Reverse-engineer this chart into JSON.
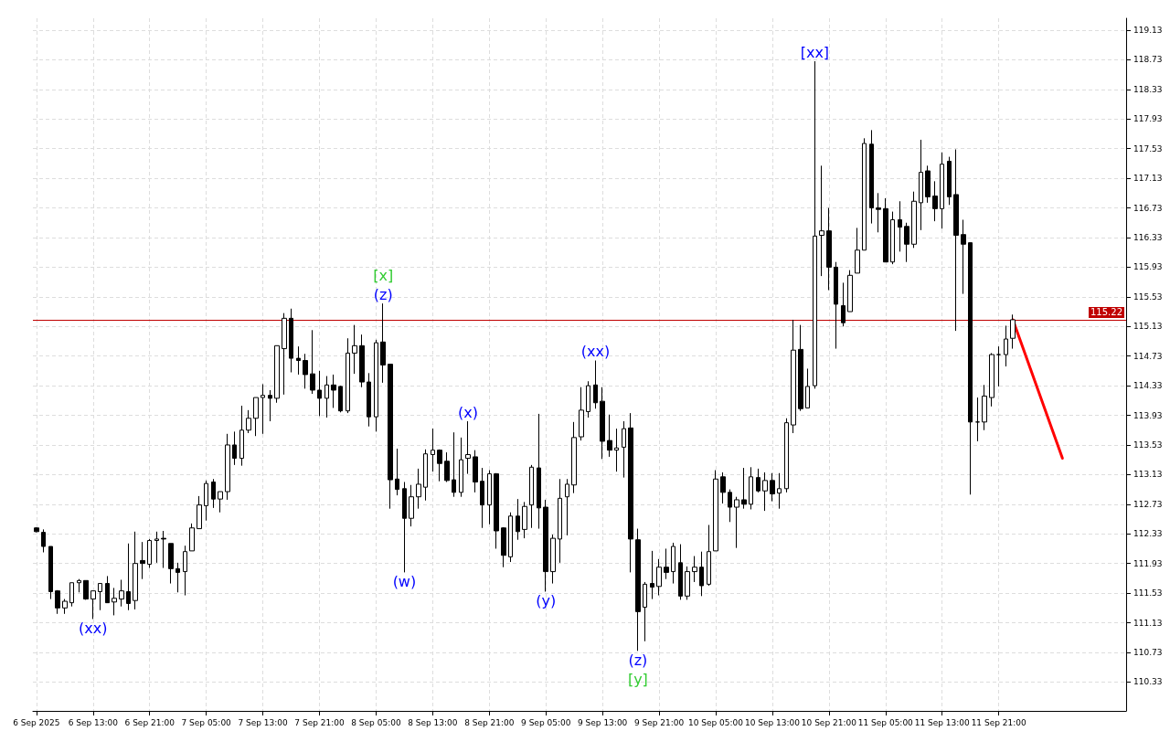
{
  "chart_data": {
    "type": "candlestick",
    "xlim": [
      "2025-09-06T04:30",
      "2025-09-12T15:00"
    ],
    "xticks": [
      {
        "value": "2025-09-06T05:00",
        "label": "6 Sep 2025"
      },
      {
        "value": "2025-09-06T13:00",
        "label": "6 Sep 13:00"
      },
      {
        "value": "2025-09-06T21:00",
        "label": "6 Sep 21:00"
      },
      {
        "value": "2025-09-07T05:00",
        "label": "7 Sep 05:00"
      },
      {
        "value": "2025-09-07T13:00",
        "label": "7 Sep 13:00"
      },
      {
        "value": "2025-09-07T21:00",
        "label": "7 Sep 21:00"
      },
      {
        "value": "2025-09-08T05:00",
        "label": "8 Sep 05:00"
      },
      {
        "value": "2025-09-08T13:00",
        "label": "8 Sep 13:00"
      },
      {
        "value": "2025-09-08T21:00",
        "label": "8 Sep 21:00"
      },
      {
        "value": "2025-09-09T05:00",
        "label": "9 Sep 05:00"
      },
      {
        "value": "2025-09-09T13:00",
        "label": "9 Sep 13:00"
      },
      {
        "value": "2025-09-09T21:00",
        "label": "9 Sep 21:00"
      },
      {
        "value": "2025-09-10T05:00",
        "label": "10 Sep 05:00"
      },
      {
        "value": "2025-09-10T13:00",
        "label": "10 Sep 13:00"
      },
      {
        "value": "2025-09-10T21:00",
        "label": "10 Sep 21:00"
      },
      {
        "value": "2025-09-11T05:00",
        "label": "11 Sep 05:00"
      },
      {
        "value": "2025-09-11T13:00",
        "label": "11 Sep 13:00"
      },
      {
        "value": "2025-09-11T21:00",
        "label": "11 Sep 21:00"
      }
    ],
    "ylim": [
      109.94,
      119.29
    ],
    "yticks": [
      110.33,
      110.73,
      111.13,
      111.53,
      111.93,
      112.33,
      112.73,
      113.13,
      113.53,
      113.93,
      114.33,
      114.73,
      115.13,
      115.53,
      115.93,
      116.33,
      116.73,
      117.13,
      117.53,
      117.93,
      118.33,
      118.73,
      119.13
    ],
    "grid": true,
    "ref_lines": [
      {
        "axis": "y",
        "value": 115.22,
        "label": "115.22",
        "color": "#c00000"
      }
    ],
    "annotations": [
      {
        "text": "(xx)",
        "x": "2025-09-06T13:00",
        "y": 111.18
      },
      {
        "text": "(z)",
        "x": "2025-09-08T06:00",
        "y": 115.44
      },
      {
        "text": "[x]",
        "x": "2025-09-08T06:00",
        "y": 115.44
      },
      {
        "text": "(w)",
        "x": "2025-09-08T09:00",
        "y": 111.81
      },
      {
        "text": "(x)",
        "x": "2025-09-08T18:00",
        "y": 113.85
      },
      {
        "text": "(y)",
        "x": "2025-09-09T05:00",
        "y": 111.55
      },
      {
        "text": "(xx)",
        "x": "2025-09-09T12:00",
        "y": 114.67
      },
      {
        "text": "(z)",
        "x": "2025-09-09T18:00",
        "y": 110.75
      },
      {
        "text": "[y]",
        "x": "2025-09-09T18:00",
        "y": 110.75
      },
      {
        "text": "[xx]",
        "x": "2025-09-10T19:00",
        "y": 118.71
      }
    ],
    "series": [
      {
        "color": "#000000",
        "x": [
          "2025-09-06T05:00",
          "2025-09-06T06:00",
          "2025-09-06T07:00",
          "2025-09-06T08:00",
          "2025-09-06T09:00",
          "2025-09-06T10:00",
          "2025-09-06T11:00",
          "2025-09-06T12:00",
          "2025-09-06T13:00",
          "2025-09-06T14:00",
          "2025-09-06T15:00",
          "2025-09-06T16:00",
          "2025-09-06T17:00",
          "2025-09-06T18:00",
          "2025-09-06T19:00",
          "2025-09-06T20:00",
          "2025-09-06T21:00",
          "2025-09-06T22:00",
          "2025-09-06T23:00",
          "2025-09-07T00:00",
          "2025-09-07T01:00",
          "2025-09-07T02:00",
          "2025-09-07T03:00",
          "2025-09-07T04:00",
          "2025-09-07T05:00",
          "2025-09-07T06:00",
          "2025-09-07T07:00",
          "2025-09-07T08:00",
          "2025-09-07T09:00",
          "2025-09-07T10:00",
          "2025-09-07T11:00",
          "2025-09-07T12:00",
          "2025-09-07T13:00",
          "2025-09-07T14:00",
          "2025-09-07T15:00",
          "2025-09-07T16:00",
          "2025-09-07T17:00",
          "2025-09-07T18:00",
          "2025-09-07T19:00",
          "2025-09-07T20:00",
          "2025-09-07T21:00",
          "2025-09-07T22:00",
          "2025-09-07T23:00",
          "2025-09-08T00:00",
          "2025-09-08T01:00",
          "2025-09-08T02:00",
          "2025-09-08T03:00",
          "2025-09-08T04:00",
          "2025-09-08T05:00",
          "2025-09-08T06:00",
          "2025-09-08T07:00",
          "2025-09-08T08:00",
          "2025-09-08T09:00",
          "2025-09-08T10:00",
          "2025-09-08T11:00",
          "2025-09-08T12:00",
          "2025-09-08T13:00",
          "2025-09-08T14:00",
          "2025-09-08T15:00",
          "2025-09-08T16:00",
          "2025-09-08T17:00",
          "2025-09-08T18:00",
          "2025-09-08T19:00",
          "2025-09-08T20:00",
          "2025-09-08T21:00",
          "2025-09-08T22:00",
          "2025-09-08T23:00",
          "2025-09-09T00:00",
          "2025-09-09T01:00",
          "2025-09-09T02:00",
          "2025-09-09T03:00",
          "2025-09-09T04:00",
          "2025-09-09T05:00",
          "2025-09-09T06:00",
          "2025-09-09T07:00",
          "2025-09-09T08:00",
          "2025-09-09T09:00",
          "2025-09-09T10:00",
          "2025-09-09T11:00",
          "2025-09-09T12:00",
          "2025-09-09T13:00",
          "2025-09-09T14:00",
          "2025-09-09T15:00",
          "2025-09-09T16:00",
          "2025-09-09T17:00",
          "2025-09-09T18:00",
          "2025-09-09T19:00",
          "2025-09-09T20:00",
          "2025-09-09T21:00",
          "2025-09-09T22:00",
          "2025-09-09T23:00",
          "2025-09-10T00:00",
          "2025-09-10T01:00",
          "2025-09-10T02:00",
          "2025-09-10T03:00",
          "2025-09-10T04:00",
          "2025-09-10T05:00",
          "2025-09-10T06:00",
          "2025-09-10T07:00",
          "2025-09-10T08:00",
          "2025-09-10T09:00",
          "2025-09-10T10:00",
          "2025-09-10T11:00",
          "2025-09-10T12:00",
          "2025-09-10T13:00",
          "2025-09-10T14:00",
          "2025-09-10T15:00",
          "2025-09-10T16:00",
          "2025-09-10T17:00",
          "2025-09-10T18:00",
          "2025-09-10T19:00",
          "2025-09-10T20:00",
          "2025-09-10T21:00",
          "2025-09-10T22:00",
          "2025-09-10T23:00",
          "2025-09-11T00:00",
          "2025-09-11T01:00",
          "2025-09-11T02:00",
          "2025-09-11T03:00",
          "2025-09-11T04:00",
          "2025-09-11T05:00",
          "2025-09-11T06:00",
          "2025-09-11T07:00",
          "2025-09-11T08:00",
          "2025-09-11T09:00",
          "2025-09-11T10:00",
          "2025-09-11T11:00",
          "2025-09-11T12:00",
          "2025-09-11T13:00",
          "2025-09-11T14:00",
          "2025-09-11T15:00",
          "2025-09-11T16:00",
          "2025-09-11T17:00",
          "2025-09-11T18:00",
          "2025-09-11T19:00",
          "2025-09-11T20:00",
          "2025-09-11T21:00",
          "2025-09-11T22:00",
          "2025-09-11T23:00"
        ],
        "ohlc": [
          [
            112.41,
            112.42,
            112.35,
            112.36
          ],
          [
            112.35,
            112.39,
            112.08,
            112.16
          ],
          [
            112.16,
            112.16,
            111.45,
            111.55
          ],
          [
            111.56,
            111.57,
            111.25,
            111.33
          ],
          [
            111.33,
            111.45,
            111.25,
            111.42
          ],
          [
            111.4,
            111.67,
            111.35,
            111.67
          ],
          [
            111.67,
            111.72,
            111.54,
            111.7
          ],
          [
            111.7,
            111.7,
            111.44,
            111.45
          ],
          [
            111.45,
            111.56,
            111.18,
            111.56
          ],
          [
            111.55,
            111.66,
            111.3,
            111.66
          ],
          [
            111.66,
            111.76,
            111.4,
            111.4
          ],
          [
            111.41,
            111.6,
            111.23,
            111.46
          ],
          [
            111.45,
            111.71,
            111.35,
            111.56
          ],
          [
            111.55,
            112.2,
            111.3,
            111.39
          ],
          [
            111.43,
            112.36,
            111.31,
            111.93
          ],
          [
            111.97,
            112.22,
            111.72,
            111.93
          ],
          [
            111.92,
            112.26,
            111.87,
            112.24
          ],
          [
            112.24,
            112.36,
            111.94,
            112.26
          ],
          [
            112.27,
            112.37,
            111.87,
            112.26
          ],
          [
            112.2,
            112.2,
            111.66,
            111.86
          ],
          [
            111.86,
            111.94,
            111.54,
            111.81
          ],
          [
            111.82,
            112.17,
            111.5,
            112.09
          ],
          [
            112.1,
            112.47,
            112.1,
            112.41
          ],
          [
            112.4,
            112.84,
            112.4,
            112.72
          ],
          [
            112.71,
            113.05,
            112.51,
            113.01
          ],
          [
            113.03,
            113.07,
            112.68,
            112.8
          ],
          [
            112.8,
            112.9,
            112.62,
            112.9
          ],
          [
            112.9,
            113.68,
            112.79,
            113.53
          ],
          [
            113.53,
            113.71,
            113.26,
            113.35
          ],
          [
            113.35,
            114.06,
            113.25,
            113.73
          ],
          [
            113.73,
            114.0,
            113.69,
            113.89
          ],
          [
            113.89,
            114.17,
            113.65,
            114.17
          ],
          [
            114.17,
            114.35,
            113.68,
            114.2
          ],
          [
            114.2,
            114.27,
            113.85,
            114.16
          ],
          [
            114.16,
            114.87,
            114.1,
            114.87
          ],
          [
            114.83,
            115.31,
            114.21,
            115.24
          ],
          [
            115.24,
            115.37,
            114.51,
            114.7
          ],
          [
            114.7,
            114.86,
            114.48,
            114.67
          ],
          [
            114.67,
            114.76,
            114.29,
            114.48
          ],
          [
            114.49,
            115.08,
            114.22,
            114.27
          ],
          [
            114.27,
            114.53,
            113.92,
            114.16
          ],
          [
            114.16,
            114.46,
            113.9,
            114.34
          ],
          [
            114.34,
            114.48,
            114.03,
            114.27
          ],
          [
            114.32,
            114.33,
            113.97,
            113.99
          ],
          [
            113.99,
            114.97,
            113.96,
            114.77
          ],
          [
            114.77,
            115.15,
            114.49,
            114.87
          ],
          [
            114.87,
            115.02,
            114.31,
            114.38
          ],
          [
            114.38,
            114.5,
            113.78,
            113.91
          ],
          [
            113.91,
            114.95,
            113.71,
            114.91
          ],
          [
            114.92,
            115.44,
            114.37,
            114.61
          ],
          [
            114.62,
            114.62,
            112.67,
            113.06
          ],
          [
            113.07,
            113.48,
            112.85,
            112.93
          ],
          [
            112.94,
            113.03,
            111.81,
            112.54
          ],
          [
            112.54,
            112.99,
            112.43,
            112.83
          ],
          [
            112.83,
            113.21,
            112.67,
            113.0
          ],
          [
            112.96,
            113.47,
            112.78,
            113.41
          ],
          [
            113.4,
            113.75,
            113.17,
            113.46
          ],
          [
            113.46,
            113.47,
            113.04,
            113.28
          ],
          [
            113.31,
            113.43,
            113.03,
            113.05
          ],
          [
            113.06,
            113.7,
            112.83,
            112.89
          ],
          [
            112.89,
            113.63,
            112.83,
            113.33
          ],
          [
            113.35,
            113.85,
            113.14,
            113.4
          ],
          [
            113.37,
            113.46,
            112.89,
            113.03
          ],
          [
            113.04,
            113.22,
            112.41,
            112.72
          ],
          [
            112.72,
            113.19,
            112.46,
            113.14
          ],
          [
            113.14,
            113.15,
            112.13,
            112.37
          ],
          [
            112.41,
            112.42,
            111.88,
            112.04
          ],
          [
            112.02,
            112.62,
            111.95,
            112.57
          ],
          [
            112.57,
            112.8,
            112.25,
            112.36
          ],
          [
            112.39,
            112.76,
            112.27,
            112.7
          ],
          [
            112.72,
            113.26,
            112.41,
            113.23
          ],
          [
            113.22,
            113.95,
            112.4,
            112.68
          ],
          [
            112.69,
            112.79,
            111.55,
            111.82
          ],
          [
            111.82,
            112.32,
            111.66,
            112.27
          ],
          [
            112.26,
            113.07,
            111.94,
            112.81
          ],
          [
            112.83,
            113.07,
            112.31,
            113.0
          ],
          [
            112.99,
            113.84,
            112.88,
            113.63
          ],
          [
            113.64,
            114.31,
            113.59,
            114.0
          ],
          [
            113.98,
            114.39,
            113.9,
            114.33
          ],
          [
            114.34,
            114.67,
            114.02,
            114.1
          ],
          [
            114.12,
            114.31,
            113.34,
            113.58
          ],
          [
            113.59,
            113.94,
            113.37,
            113.46
          ],
          [
            113.46,
            113.75,
            113.17,
            113.49
          ],
          [
            113.5,
            113.85,
            113.09,
            113.75
          ],
          [
            113.76,
            113.96,
            111.81,
            112.26
          ],
          [
            112.25,
            112.4,
            110.75,
            111.28
          ],
          [
            111.34,
            111.68,
            110.88,
            111.65
          ],
          [
            111.66,
            112.1,
            111.45,
            111.61
          ],
          [
            111.62,
            111.99,
            111.5,
            111.88
          ],
          [
            111.88,
            112.13,
            111.72,
            111.81
          ],
          [
            111.82,
            112.21,
            111.66,
            112.16
          ],
          [
            111.94,
            112.19,
            111.44,
            111.49
          ],
          [
            111.49,
            111.89,
            111.44,
            111.82
          ],
          [
            111.82,
            112.03,
            111.68,
            111.88
          ],
          [
            111.88,
            112.09,
            111.49,
            111.63
          ],
          [
            111.65,
            112.45,
            111.63,
            112.09
          ],
          [
            112.1,
            113.19,
            112.1,
            113.07
          ],
          [
            113.1,
            113.16,
            112.74,
            112.89
          ],
          [
            112.89,
            112.93,
            112.49,
            112.69
          ],
          [
            112.69,
            112.83,
            112.14,
            112.79
          ],
          [
            112.79,
            113.22,
            112.67,
            112.73
          ],
          [
            112.73,
            113.23,
            112.66,
            113.1
          ],
          [
            113.09,
            113.21,
            112.89,
            112.91
          ],
          [
            112.91,
            113.16,
            112.64,
            113.05
          ],
          [
            113.05,
            113.15,
            112.77,
            112.87
          ],
          [
            112.88,
            113.15,
            112.67,
            112.94
          ],
          [
            112.94,
            113.89,
            112.89,
            113.83
          ],
          [
            113.8,
            115.22,
            113.69,
            114.81
          ],
          [
            114.82,
            115.15,
            113.99,
            114.02
          ],
          [
            114.03,
            114.56,
            114.03,
            114.32
          ],
          [
            114.33,
            118.71,
            114.29,
            116.35
          ],
          [
            116.36,
            117.3,
            115.81,
            116.42
          ],
          [
            116.42,
            116.73,
            115.62,
            115.93
          ],
          [
            115.93,
            116.0,
            114.83,
            115.43
          ],
          [
            115.41,
            115.72,
            115.13,
            115.18
          ],
          [
            115.33,
            115.89,
            115.33,
            115.82
          ],
          [
            115.85,
            116.46,
            115.85,
            116.16
          ],
          [
            116.16,
            117.67,
            116.16,
            117.6
          ],
          [
            117.59,
            117.78,
            116.52,
            116.73
          ],
          [
            116.73,
            116.93,
            116.4,
            116.71
          ],
          [
            116.72,
            116.86,
            116.0,
            116.0
          ],
          [
            116.0,
            116.68,
            115.97,
            116.57
          ],
          [
            116.57,
            116.82,
            116.14,
            116.47
          ],
          [
            116.48,
            116.53,
            116.0,
            116.24
          ],
          [
            116.24,
            116.95,
            116.19,
            116.82
          ],
          [
            116.8,
            117.65,
            116.43,
            117.21
          ],
          [
            117.23,
            117.3,
            116.8,
            116.88
          ],
          [
            116.89,
            117.09,
            116.55,
            116.72
          ],
          [
            116.72,
            117.48,
            116.45,
            117.32
          ],
          [
            117.36,
            117.42,
            116.77,
            116.88
          ],
          [
            116.91,
            117.52,
            115.07,
            116.36
          ],
          [
            116.37,
            116.57,
            115.57,
            116.24
          ],
          [
            116.26,
            116.26,
            112.86,
            113.84
          ],
          [
            113.84,
            114.17,
            113.58,
            113.84
          ],
          [
            113.84,
            114.34,
            113.73,
            114.19
          ],
          [
            114.17,
            114.77,
            114.05,
            114.75
          ],
          [
            114.75,
            114.86,
            114.32,
            114.75
          ],
          [
            114.75,
            115.14,
            114.59,
            114.96
          ],
          [
            114.97,
            115.29,
            114.83,
            115.22
          ]
        ]
      },
      {
        "type": "line",
        "color": "#ff0000",
        "x": [
          "2025-09-11T23:00",
          "2025-09-12T06:00"
        ],
        "values": [
          115.22,
          113.35
        ]
      }
    ]
  }
}
